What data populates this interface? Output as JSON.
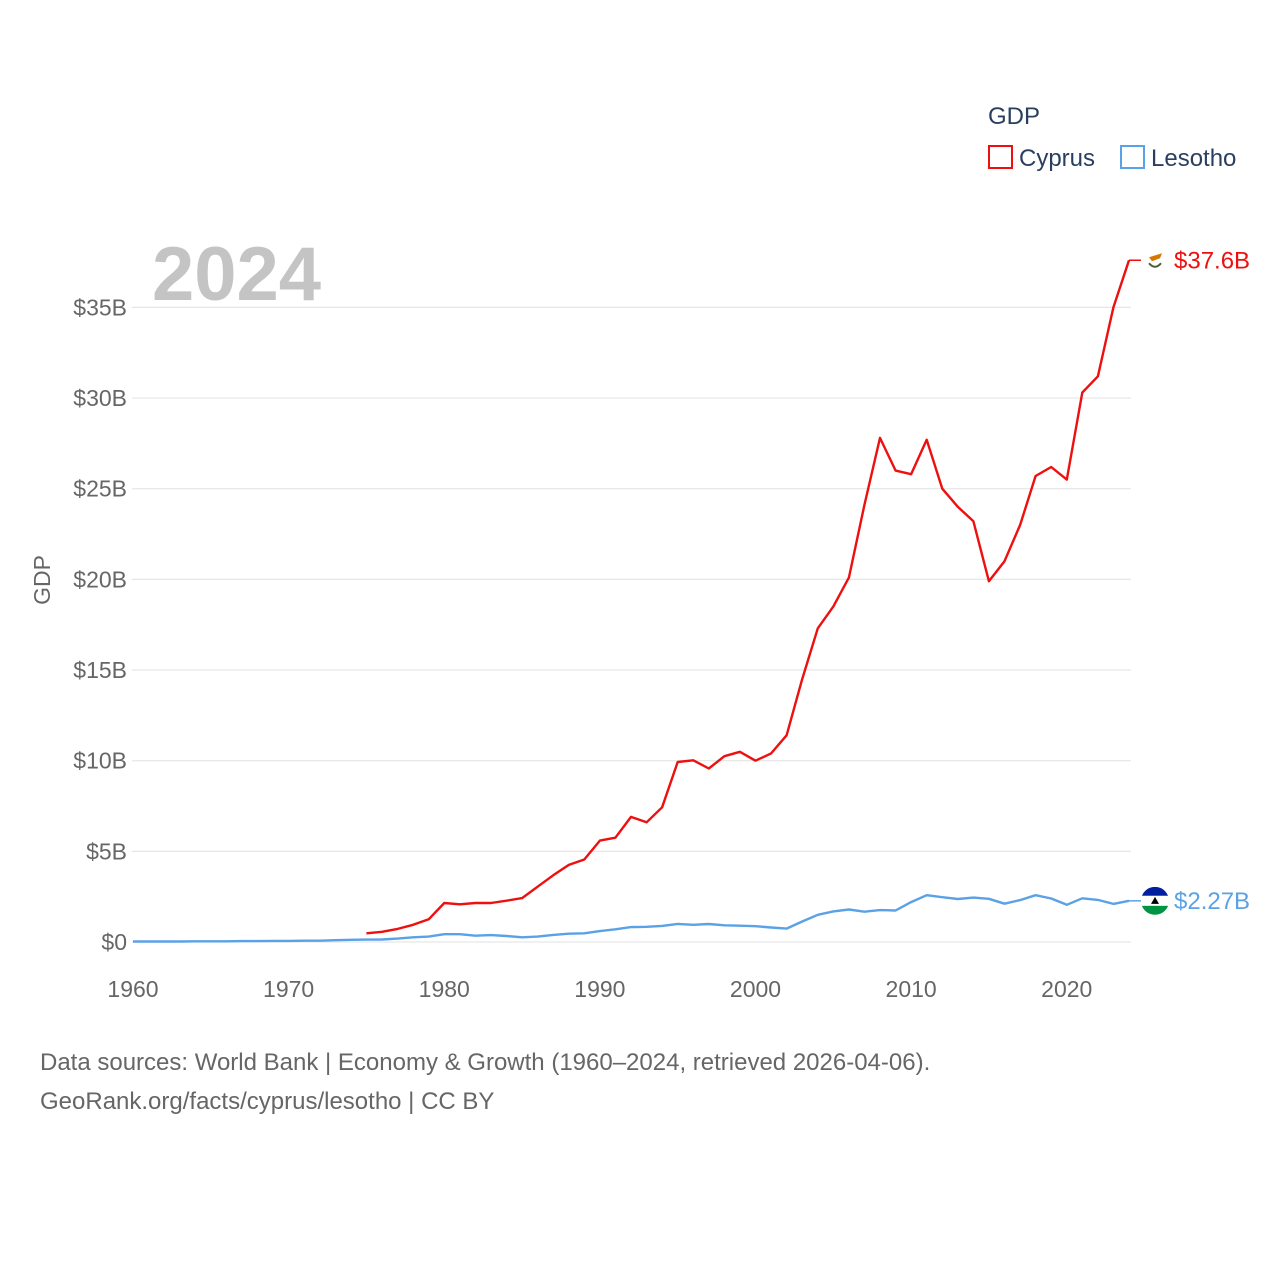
{
  "chart_data": {
    "type": "line",
    "title": "2024",
    "ylabel": "GDP",
    "xlabel": "",
    "legend_title": "GDP",
    "legend_position": "top-right",
    "xlim": [
      1960,
      2024
    ],
    "ylim": [
      0,
      38
    ],
    "x_ticks": [
      1960,
      1970,
      1980,
      1990,
      2000,
      2010,
      2020
    ],
    "x_tick_labels": [
      "1960",
      "1970",
      "1980",
      "1990",
      "2000",
      "2010",
      "2020"
    ],
    "y_ticks": [
      0,
      5,
      10,
      15,
      20,
      25,
      30,
      35
    ],
    "y_tick_labels": [
      "$0",
      "$5B",
      "$10B",
      "$15B",
      "$20B",
      "$25B",
      "$30B",
      "$35B"
    ],
    "series": [
      {
        "name": "Cyprus",
        "color": "#ee0f0f",
        "end_label": "$37.6B",
        "flag_icon": "cyprus-flag-icon",
        "x": [
          1975,
          1976,
          1977,
          1978,
          1979,
          1980,
          1981,
          1982,
          1983,
          1984,
          1985,
          1986,
          1987,
          1988,
          1989,
          1990,
          1991,
          1992,
          1993,
          1994,
          1995,
          1996,
          1997,
          1998,
          1999,
          2000,
          2001,
          2002,
          2003,
          2004,
          2005,
          2006,
          2007,
          2008,
          2009,
          2010,
          2011,
          2012,
          2013,
          2014,
          2015,
          2016,
          2017,
          2018,
          2019,
          2020,
          2021,
          2022,
          2023,
          2024
        ],
        "values": [
          0.48,
          0.56,
          0.72,
          0.95,
          1.25,
          2.15,
          2.08,
          2.15,
          2.15,
          2.28,
          2.42,
          3.05,
          3.68,
          4.25,
          4.55,
          5.59,
          5.75,
          6.9,
          6.6,
          7.43,
          9.93,
          10.02,
          9.57,
          10.25,
          10.49,
          10.0,
          10.4,
          11.4,
          14.5,
          17.3,
          18.5,
          20.1,
          24.1,
          27.8,
          26.0,
          25.8,
          27.7,
          25.0,
          24.0,
          23.2,
          19.9,
          21.0,
          23.0,
          25.7,
          26.2,
          25.5,
          30.3,
          31.2,
          35.0,
          37.6
        ]
      },
      {
        "name": "Lesotho",
        "color": "#5aa2e6",
        "end_label": "$2.27B",
        "flag_icon": "lesotho-flag-icon",
        "x": [
          1960,
          1961,
          1962,
          1963,
          1964,
          1965,
          1966,
          1967,
          1968,
          1969,
          1970,
          1971,
          1972,
          1973,
          1974,
          1975,
          1976,
          1977,
          1978,
          1979,
          1980,
          1981,
          1982,
          1983,
          1984,
          1985,
          1986,
          1987,
          1988,
          1989,
          1990,
          1991,
          1992,
          1993,
          1994,
          1995,
          1996,
          1997,
          1998,
          1999,
          2000,
          2001,
          2002,
          2003,
          2004,
          2005,
          2006,
          2007,
          2008,
          2009,
          2010,
          2011,
          2012,
          2013,
          2014,
          2015,
          2016,
          2017,
          2018,
          2019,
          2020,
          2021,
          2022,
          2023,
          2024
        ],
        "values": [
          0.03,
          0.03,
          0.03,
          0.03,
          0.04,
          0.04,
          0.04,
          0.05,
          0.05,
          0.06,
          0.06,
          0.07,
          0.07,
          0.1,
          0.12,
          0.13,
          0.14,
          0.19,
          0.26,
          0.3,
          0.43,
          0.43,
          0.35,
          0.38,
          0.33,
          0.26,
          0.3,
          0.39,
          0.46,
          0.48,
          0.6,
          0.7,
          0.82,
          0.84,
          0.89,
          1.0,
          0.95,
          0.99,
          0.92,
          0.9,
          0.87,
          0.8,
          0.74,
          1.13,
          1.5,
          1.69,
          1.79,
          1.67,
          1.76,
          1.74,
          2.2,
          2.58,
          2.47,
          2.37,
          2.45,
          2.38,
          2.11,
          2.31,
          2.58,
          2.4,
          2.05,
          2.41,
          2.32,
          2.1,
          2.27
        ]
      }
    ]
  },
  "footer": {
    "line1": "Data sources: World Bank | Economy & Growth (1960–2024, retrieved 2026-04-06).",
    "line2": "GeoRank.org/facts/cyprus/lesotho | CC BY"
  }
}
